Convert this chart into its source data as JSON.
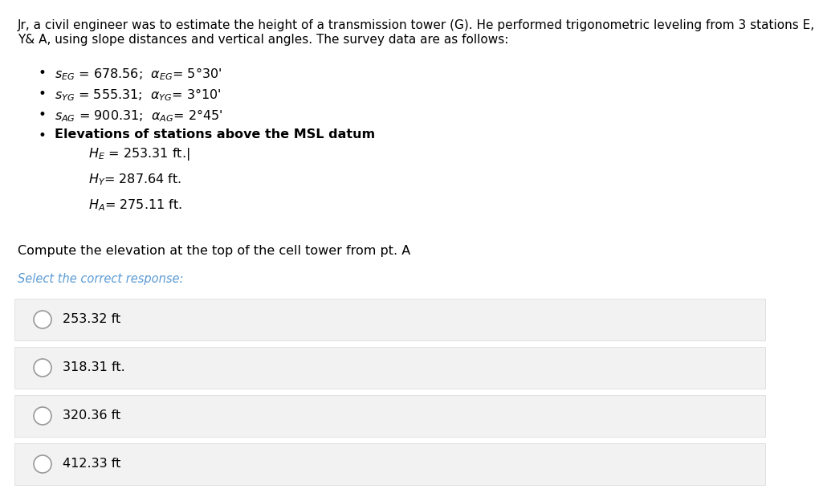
{
  "title_line1": "Jr, a civil engineer was to estimate the height of a transmission tower (G). He performed trigonometric leveling from 3 stations E,",
  "title_line2": "Y& A, using slope distances and vertical angles. The survey data are as follows:",
  "bullet1": "$s_{EG}$ = 678.56;  $\\alpha_{EG}$= 5°30'",
  "bullet2": "$s_{YG}$ = 555.31;  $\\alpha_{YG}$= 3°10'",
  "bullet3": "$s_{AG}$ = 900.31;  $\\alpha_{AG}$= 2°45'",
  "bullet4_bold": "Elevations of stations above the MSL datum",
  "bullet4_sub1": "$H_E$ = 253.31 ft.|",
  "bullet4_sub2": "$H_Y$= 287.64 ft.",
  "bullet4_sub3": "$H_A$= 275.11 ft.",
  "question": "Compute the elevation at the top of the cell tower from pt. A",
  "select_label": "Select the correct response:",
  "choices": [
    "253.32 ft",
    "318.31 ft.",
    "320.36 ft",
    "412.33 ft"
  ],
  "bg_color": "#ffffff",
  "choice_bg_color": "#f2f2f2",
  "choice_border_color": "#dddddd",
  "text_color": "#000000",
  "select_color": "#5b9bd5",
  "title_fontsize": 11.0,
  "body_fontsize": 11.5,
  "choice_fontsize": 11.5,
  "select_fontsize": 10.5
}
